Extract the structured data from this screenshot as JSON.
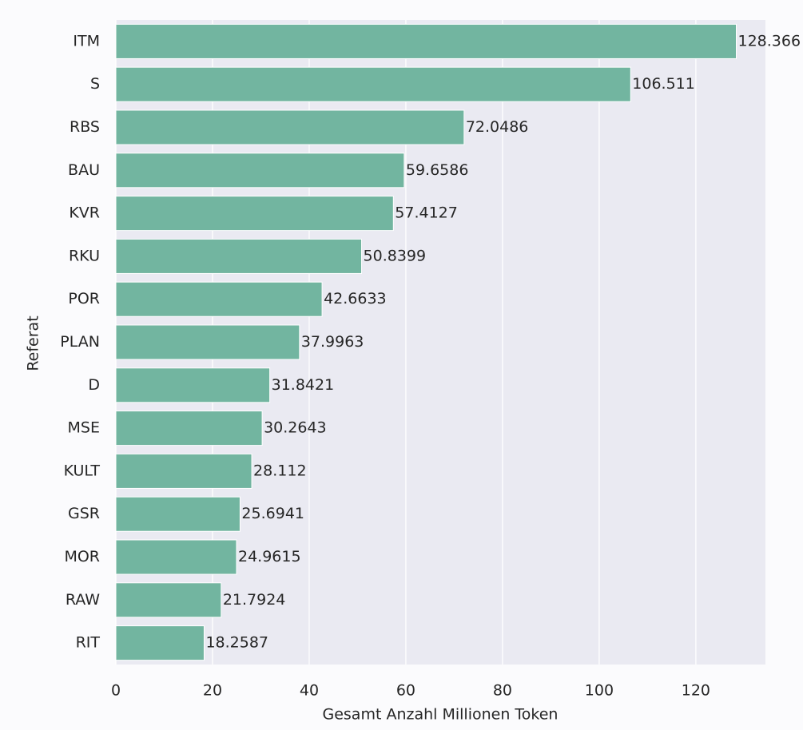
{
  "chart_data": {
    "type": "barh",
    "categories": [
      "ITM",
      "S",
      "RBS",
      "BAU",
      "KVR",
      "RKU",
      "POR",
      "PLAN",
      "D",
      "MSE",
      "KULT",
      "GSR",
      "MOR",
      "RAW",
      "RIT"
    ],
    "values": [
      128.366,
      106.511,
      72.0486,
      59.6586,
      57.4127,
      50.8399,
      42.6633,
      37.9963,
      31.8421,
      30.2643,
      28.112,
      25.6941,
      24.9615,
      21.7924,
      18.2587
    ],
    "color": "#72b5a0",
    "xlabel": "Gesamt Anzahl Millionen Token",
    "ylabel": "Referat",
    "xlim": [
      0,
      134.4
    ],
    "xticks": [
      0,
      20,
      40,
      60,
      80,
      100,
      120
    ],
    "grid": true
  }
}
